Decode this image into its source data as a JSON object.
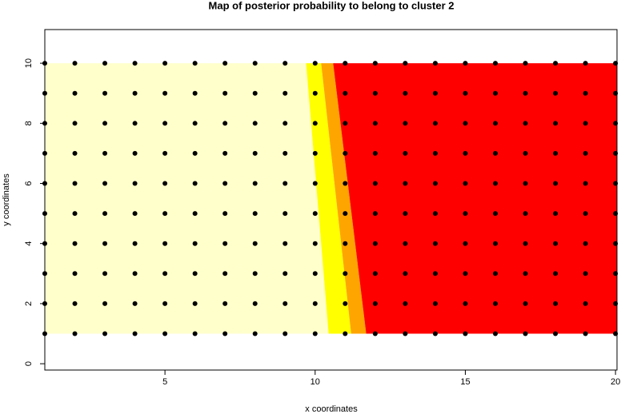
{
  "chart_data": {
    "type": "scatter",
    "title": "Map of posterior probability to belong to cluster  2",
    "x_label": "x coordinates",
    "y_label": "y coordinates",
    "xlim": [
      1,
      20.05
    ],
    "ylim": [
      -0.21,
      11.12
    ],
    "xticks": [
      5,
      10,
      15,
      20
    ],
    "yticks": [
      0,
      2,
      4,
      6,
      8,
      10
    ],
    "surface": {
      "ylim": [
        1,
        10
      ],
      "bands": [
        {
          "color": "#ffffcc",
          "x_top_end": 9.7,
          "x_bottom_end": 10.45
        },
        {
          "color": "#ffff00",
          "x_top_end": 10.2,
          "x_bottom_end": 11.2
        },
        {
          "color": "#ffa500",
          "x_top_end": 10.6,
          "x_bottom_end": 11.7
        },
        {
          "color": "#ff0000",
          "x_top_end": 20.05,
          "x_bottom_end": 20.05
        }
      ]
    },
    "point_color": "#000000",
    "x": [
      1,
      2,
      3,
      4,
      5,
      6,
      7,
      8,
      9,
      10,
      11,
      12,
      13,
      14,
      15,
      16,
      17,
      18,
      19,
      20,
      1,
      2,
      3,
      4,
      5,
      6,
      7,
      8,
      9,
      10,
      11,
      12,
      13,
      14,
      15,
      16,
      17,
      18,
      19,
      20,
      1,
      2,
      3,
      4,
      5,
      6,
      7,
      8,
      9,
      10,
      11,
      12,
      13,
      14,
      15,
      16,
      17,
      18,
      19,
      20,
      1,
      2,
      3,
      4,
      5,
      6,
      7,
      8,
      9,
      10,
      11,
      12,
      13,
      14,
      15,
      16,
      17,
      18,
      19,
      20,
      1,
      2,
      3,
      4,
      5,
      6,
      7,
      8,
      9,
      10,
      11,
      12,
      13,
      14,
      15,
      16,
      17,
      18,
      19,
      20,
      1,
      2,
      3,
      4,
      5,
      6,
      7,
      8,
      9,
      10,
      11,
      12,
      13,
      14,
      15,
      16,
      17,
      18,
      19,
      20,
      1,
      2,
      3,
      4,
      5,
      6,
      7,
      8,
      9,
      10,
      11,
      12,
      13,
      14,
      15,
      16,
      17,
      18,
      19,
      20,
      1,
      2,
      3,
      4,
      5,
      6,
      7,
      8,
      9,
      10,
      11,
      12,
      13,
      14,
      15,
      16,
      17,
      18,
      19,
      20,
      1,
      2,
      3,
      4,
      5,
      6,
      7,
      8,
      9,
      10,
      11,
      12,
      13,
      14,
      15,
      16,
      17,
      18,
      19,
      20,
      1,
      2,
      3,
      4,
      5,
      6,
      7,
      8,
      9,
      10,
      11,
      12,
      13,
      14,
      15,
      16,
      17,
      18,
      19,
      20
    ],
    "y": [
      1,
      1,
      1,
      1,
      1,
      1,
      1,
      1,
      1,
      1,
      1,
      1,
      1,
      1,
      1,
      1,
      1,
      1,
      1,
      1,
      2,
      2,
      2,
      2,
      2,
      2,
      2,
      2,
      2,
      2,
      2,
      2,
      2,
      2,
      2,
      2,
      2,
      2,
      2,
      2,
      3,
      3,
      3,
      3,
      3,
      3,
      3,
      3,
      3,
      3,
      3,
      3,
      3,
      3,
      3,
      3,
      3,
      3,
      3,
      3,
      4,
      4,
      4,
      4,
      4,
      4,
      4,
      4,
      4,
      4,
      4,
      4,
      4,
      4,
      4,
      4,
      4,
      4,
      4,
      4,
      5,
      5,
      5,
      5,
      5,
      5,
      5,
      5,
      5,
      5,
      5,
      5,
      5,
      5,
      5,
      5,
      5,
      5,
      5,
      5,
      6,
      6,
      6,
      6,
      6,
      6,
      6,
      6,
      6,
      6,
      6,
      6,
      6,
      6,
      6,
      6,
      6,
      6,
      6,
      6,
      7,
      7,
      7,
      7,
      7,
      7,
      7,
      7,
      7,
      7,
      7,
      7,
      7,
      7,
      7,
      7,
      7,
      7,
      7,
      7,
      8,
      8,
      8,
      8,
      8,
      8,
      8,
      8,
      8,
      8,
      8,
      8,
      8,
      8,
      8,
      8,
      8,
      8,
      8,
      8,
      9,
      9,
      9,
      9,
      9,
      9,
      9,
      9,
      9,
      9,
      9,
      9,
      9,
      9,
      9,
      9,
      9,
      9,
      9,
      9,
      10,
      10,
      10,
      10,
      10,
      10,
      10,
      10,
      10,
      10,
      10,
      10,
      10,
      10,
      10,
      10,
      10,
      10,
      10,
      10
    ]
  }
}
